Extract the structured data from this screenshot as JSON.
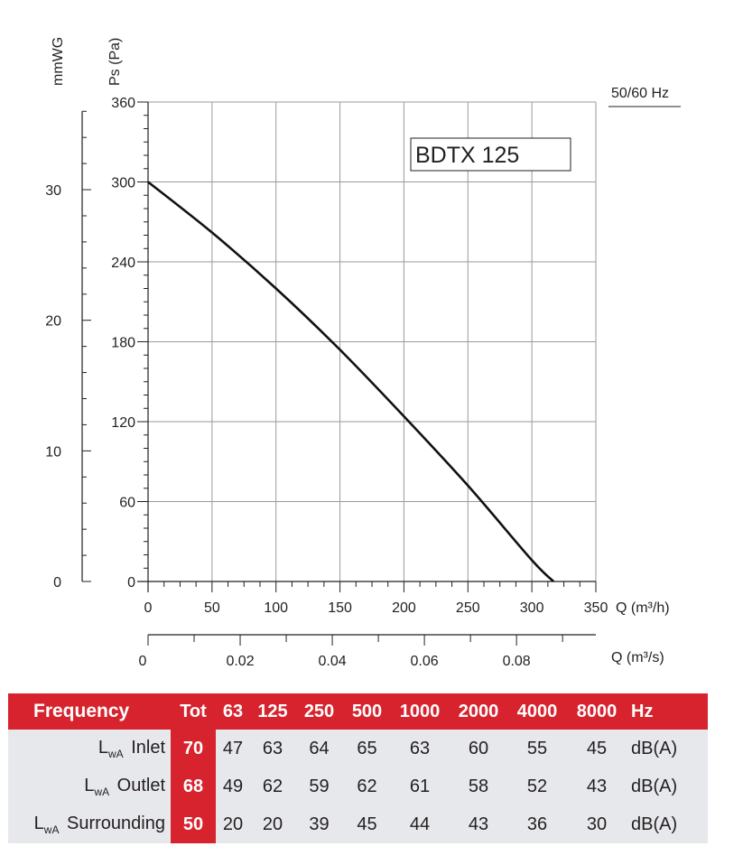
{
  "chart_data": {
    "type": "line",
    "title": "BDTX 125",
    "frequency_label": "50/60 Hz",
    "xlabel": "Q (m³/h)",
    "x2label": "Q (m³/s)",
    "ylabel": "Ps (Pa)",
    "y2label": "mmWG",
    "xlim": [
      0,
      350
    ],
    "ylim": [
      0,
      360
    ],
    "x_ticks": [
      0,
      50,
      100,
      150,
      200,
      250,
      300,
      350
    ],
    "y_ticks": [
      0,
      60,
      120,
      180,
      240,
      300,
      360
    ],
    "x2_ticks": [
      "0",
      "0.02",
      "0.04",
      "0.06",
      "0.08"
    ],
    "x2_values": [
      0,
      0.02,
      0.04,
      0.06,
      0.08
    ],
    "y2_ticks": [
      "0",
      "10",
      "20",
      "30"
    ],
    "y2_values": [
      0,
      10,
      20,
      30
    ],
    "grid": true,
    "series": [
      {
        "x": [
          0,
          50,
          100,
          150,
          200,
          250,
          300,
          317
        ],
        "y": [
          300,
          262,
          220,
          174,
          124,
          72,
          16,
          0
        ]
      }
    ]
  },
  "table": {
    "header": [
      "Frequency",
      "Tot",
      "63",
      "125",
      "250",
      "500",
      "1000",
      "2000",
      "4000",
      "8000",
      "Hz"
    ],
    "rows": [
      {
        "main": "L",
        "sub": "wA",
        "rest": " Inlet",
        "tot": "70",
        "values": [
          "47",
          "63",
          "64",
          "65",
          "63",
          "60",
          "55",
          "45"
        ],
        "unit": "dB(A)"
      },
      {
        "main": "L",
        "sub": "wA",
        "rest": " Outlet",
        "tot": "68",
        "values": [
          "49",
          "62",
          "59",
          "62",
          "61",
          "58",
          "52",
          "43"
        ],
        "unit": "dB(A)"
      },
      {
        "main": "L",
        "sub": "wA",
        "rest": " Surrounding",
        "tot": "50",
        "values": [
          "20",
          "20",
          "39",
          "45",
          "44",
          "43",
          "36",
          "30"
        ],
        "unit": "dB(A)"
      }
    ]
  }
}
